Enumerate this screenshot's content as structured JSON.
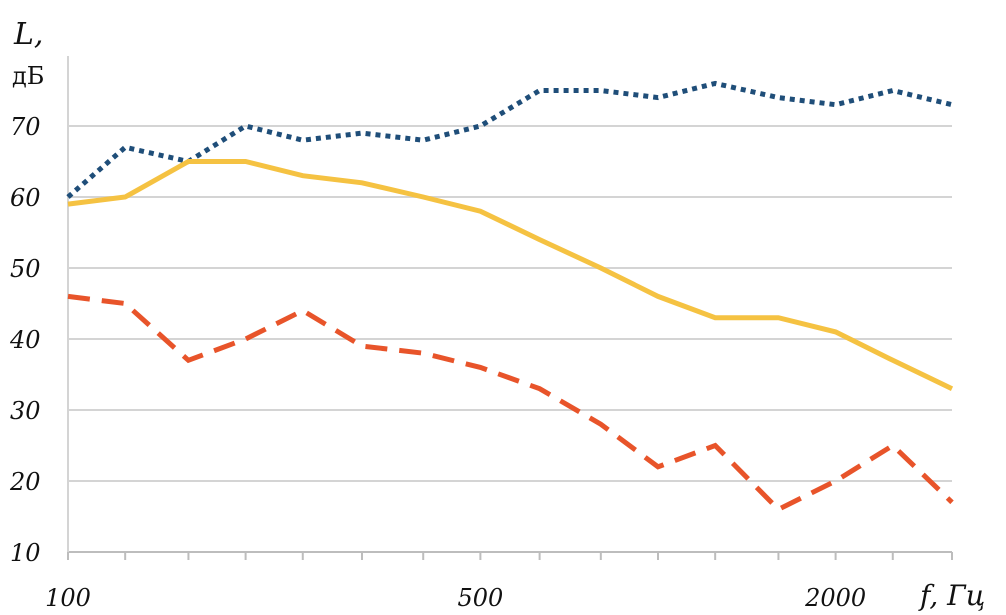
{
  "chart_data": {
    "type": "line",
    "ylabel": "L,",
    "yunit": "дБ",
    "xlabel": "f, Гц",
    "x": [
      100,
      125,
      160,
      200,
      250,
      315,
      400,
      500,
      630,
      800,
      1000,
      1250,
      1600,
      2000,
      2500,
      3150
    ],
    "xtick_labels": [
      {
        "value": 100,
        "label": "100"
      },
      {
        "value": 500,
        "label": "500"
      },
      {
        "value": 2000,
        "label": "2000"
      }
    ],
    "xscale": "log",
    "yticks": [
      10,
      20,
      30,
      40,
      50,
      60,
      70
    ],
    "ylim": [
      10,
      76
    ],
    "grid": true,
    "series": [
      {
        "style": "dotted",
        "color": "#1f4e79",
        "values": [
          60,
          67,
          65,
          70,
          68,
          69,
          68,
          70,
          75,
          75,
          74,
          76,
          74,
          73,
          75,
          73
        ]
      },
      {
        "style": "solid",
        "color": "#f5c242",
        "values": [
          59,
          60,
          65,
          65,
          63,
          62,
          60,
          58,
          54,
          50,
          46,
          43,
          43,
          41,
          37,
          33
        ]
      },
      {
        "style": "dashed",
        "color": "#e8542a",
        "values": [
          46,
          45,
          37,
          40,
          44,
          39,
          38,
          36,
          33,
          28,
          22,
          25,
          16,
          20,
          25,
          17
        ]
      }
    ]
  }
}
